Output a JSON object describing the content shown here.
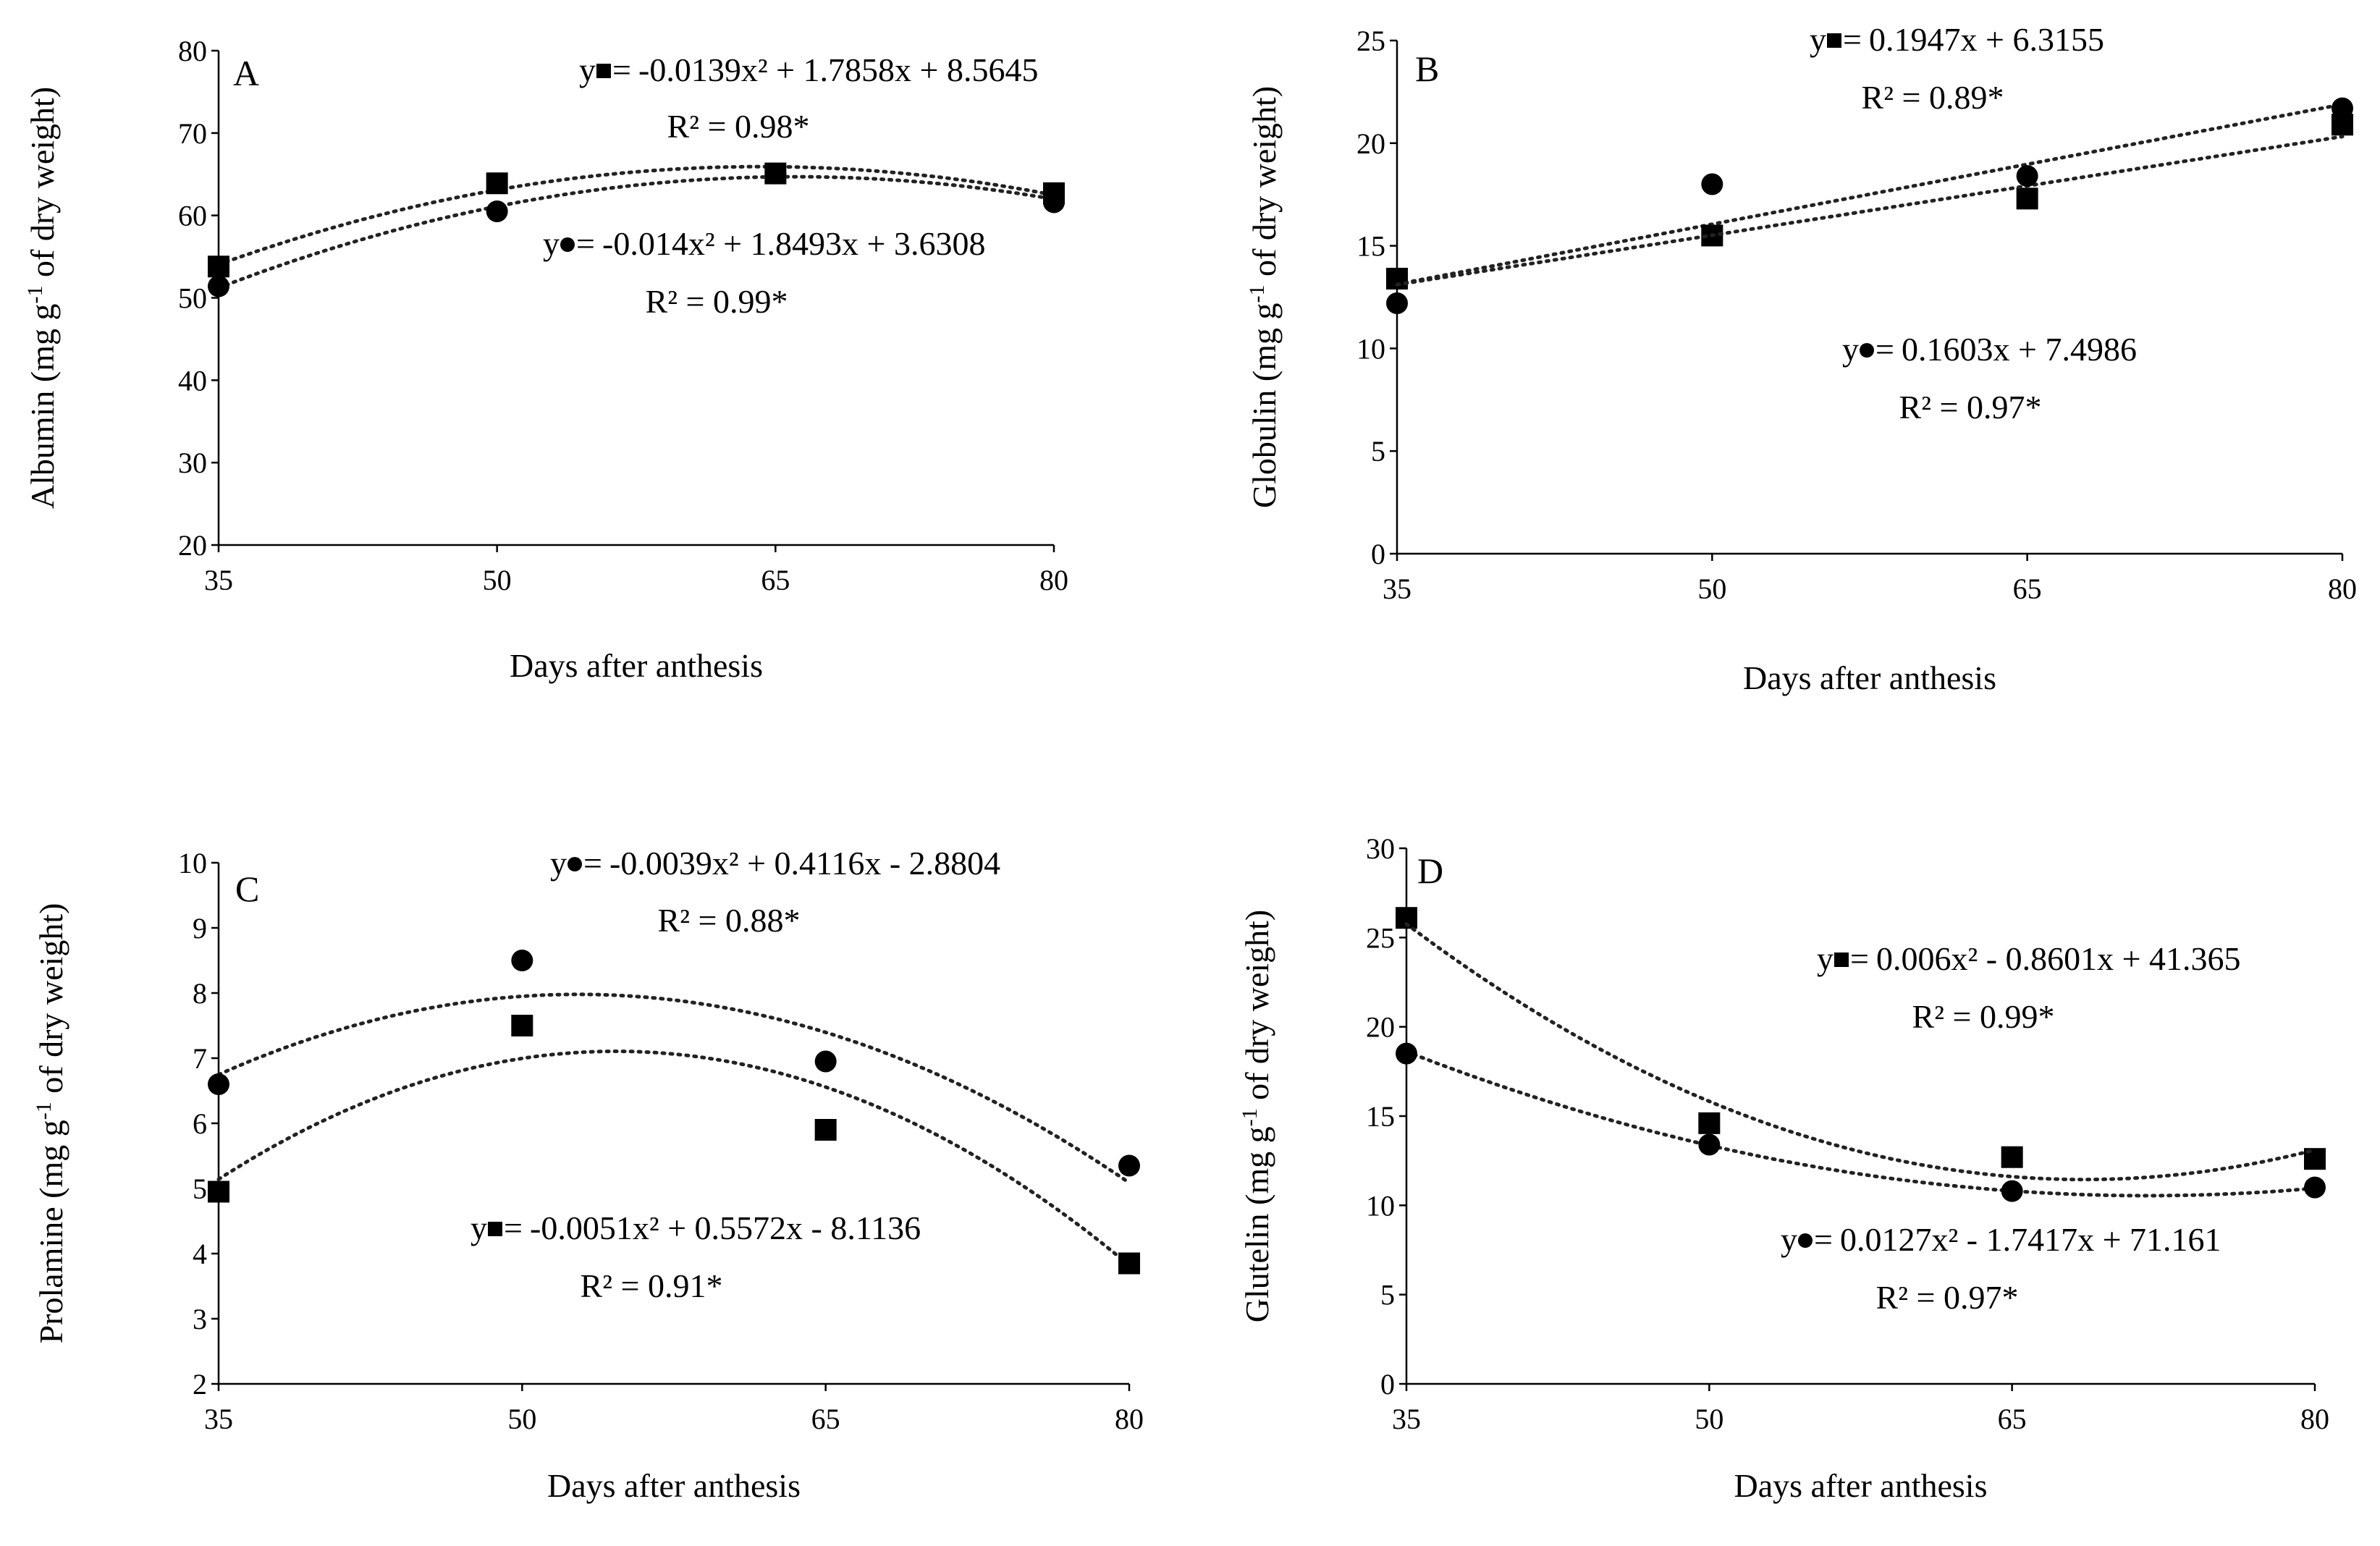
{
  "chart_data": [
    {
      "type": "scatter",
      "panel": "A",
      "xlabel": "Days after anthesis",
      "ylabel": "Albumin (mg g-1 of dry weight)",
      "ylabel_parts": {
        "before": "Albumin (mg g",
        "sup": "-1",
        "after": " of dry weight)"
      },
      "x_ticks": [
        35,
        50,
        65,
        80
      ],
      "y_ticks": [
        20,
        30,
        40,
        50,
        60,
        70,
        80
      ],
      "ylim": [
        20,
        80
      ],
      "series": [
        {
          "name": "square",
          "marker": "square",
          "x": [
            35,
            50,
            65,
            80
          ],
          "values": [
            53.8,
            63.9,
            65.1,
            62.7
          ],
          "fit": {
            "kind": "poly2",
            "coef": [
              -0.0139,
              1.7858,
              8.5645
            ]
          },
          "equation": "-0.0139x² + 1.7858x + 8.5645",
          "r2": "R² = 0.98*"
        },
        {
          "name": "circle",
          "marker": "circle",
          "x": [
            35,
            50,
            65,
            80
          ],
          "values": [
            51.4,
            60.5,
            65.1,
            61.6
          ],
          "fit": {
            "kind": "poly2",
            "coef": [
              -0.014,
              1.8493,
              3.6308
            ]
          },
          "equation": "-0.014x² + 1.8493x + 3.6308",
          "r2": "R² = 0.99*"
        }
      ]
    },
    {
      "type": "scatter",
      "panel": "B",
      "xlabel": "Days after anthesis",
      "ylabel": "Globulin (mg g-1 of dry weight)",
      "ylabel_parts": {
        "before": "Globulin  (mg g",
        "sup": "-1",
        "after": " of dry weight)"
      },
      "x_ticks": [
        35,
        50,
        65,
        80
      ],
      "y_ticks": [
        0,
        5,
        10,
        15,
        20,
        25
      ],
      "ylim": [
        0,
        25
      ],
      "series": [
        {
          "name": "square",
          "marker": "square",
          "x": [
            35,
            50,
            65,
            80
          ],
          "values": [
            13.4,
            15.5,
            17.3,
            20.9
          ],
          "fit": {
            "kind": "poly1",
            "coef": [
              0.1947,
              6.3155
            ]
          },
          "equation": "0.1947x + 6.3155",
          "r2": "R² = 0.89*"
        },
        {
          "name": "circle",
          "marker": "circle",
          "x": [
            35,
            50,
            65,
            80
          ],
          "values": [
            12.2,
            18.0,
            18.4,
            21.7
          ],
          "fit": {
            "kind": "poly1",
            "coef": [
              0.1603,
              7.4986
            ]
          },
          "equation": "0.1603x + 7.4986",
          "r2": "R² = 0.97*"
        }
      ]
    },
    {
      "type": "scatter",
      "panel": "C",
      "xlabel": "Days after anthesis",
      "ylabel": "Prolamine (mg g-1 of dry weight)",
      "ylabel_parts": {
        "before": "Prolamine (mg g",
        "sup": "-1",
        "after": " of dry weight)"
      },
      "x_ticks": [
        35,
        50,
        65,
        80
      ],
      "y_ticks": [
        2,
        3,
        4,
        5,
        6,
        7,
        8,
        9,
        10
      ],
      "ylim": [
        2,
        10
      ],
      "series": [
        {
          "name": "circle",
          "marker": "circle",
          "x": [
            35,
            50,
            65,
            80
          ],
          "values": [
            6.6,
            8.5,
            6.95,
            5.35
          ],
          "fit": {
            "kind": "poly2",
            "coef": [
              -0.0039,
              0.4116,
              -2.8804
            ]
          },
          "equation": "-0.0039x² + 0.4116x - 2.8804",
          "r2": "R² = 0.88*"
        },
        {
          "name": "square",
          "marker": "square",
          "x": [
            35,
            50,
            65,
            80
          ],
          "values": [
            4.95,
            7.5,
            5.9,
            3.85
          ],
          "fit": {
            "kind": "poly2",
            "coef": [
              -0.0051,
              0.5572,
              -8.1136
            ]
          },
          "equation": "-0.0051x² + 0.5572x - 8.1136",
          "r2": "R² = 0.91*"
        }
      ]
    },
    {
      "type": "scatter",
      "panel": "D",
      "xlabel": "Days after anthesis",
      "ylabel": "Glutelin (mg g-1 of dry weight)",
      "ylabel_parts": {
        "before": "Glutelin  (mg g",
        "sup": "-1",
        "after": " of dry weight)"
      },
      "x_ticks": [
        35,
        50,
        65,
        80
      ],
      "y_ticks": [
        0,
        5,
        10,
        15,
        20,
        25,
        30
      ],
      "ylim": [
        0,
        30
      ],
      "series": [
        {
          "name": "square",
          "marker": "square",
          "x": [
            35,
            50,
            65,
            80
          ],
          "values": [
            26.1,
            14.6,
            12.7,
            12.6
          ],
          "fit": {
            "kind": "poly2",
            "coef": [
              0.006,
              -0.8601,
              41.365
            ]
          },
          "equation": "0.006x² - 0.8601x + 41.365",
          "r2": "R² = 0.99*"
        },
        {
          "name": "circle",
          "marker": "circle",
          "x": [
            35,
            50,
            65,
            80
          ],
          "values": [
            18.5,
            13.4,
            10.8,
            11.0
          ],
          "fit": {
            "kind": "poly2",
            "coef": [
              0.0127,
              -1.7417,
              71.161
            ]
          },
          "equation": "0.0127x² - 1.7417x + 71.161",
          "r2": "R² = 0.97*"
        }
      ]
    }
  ]
}
